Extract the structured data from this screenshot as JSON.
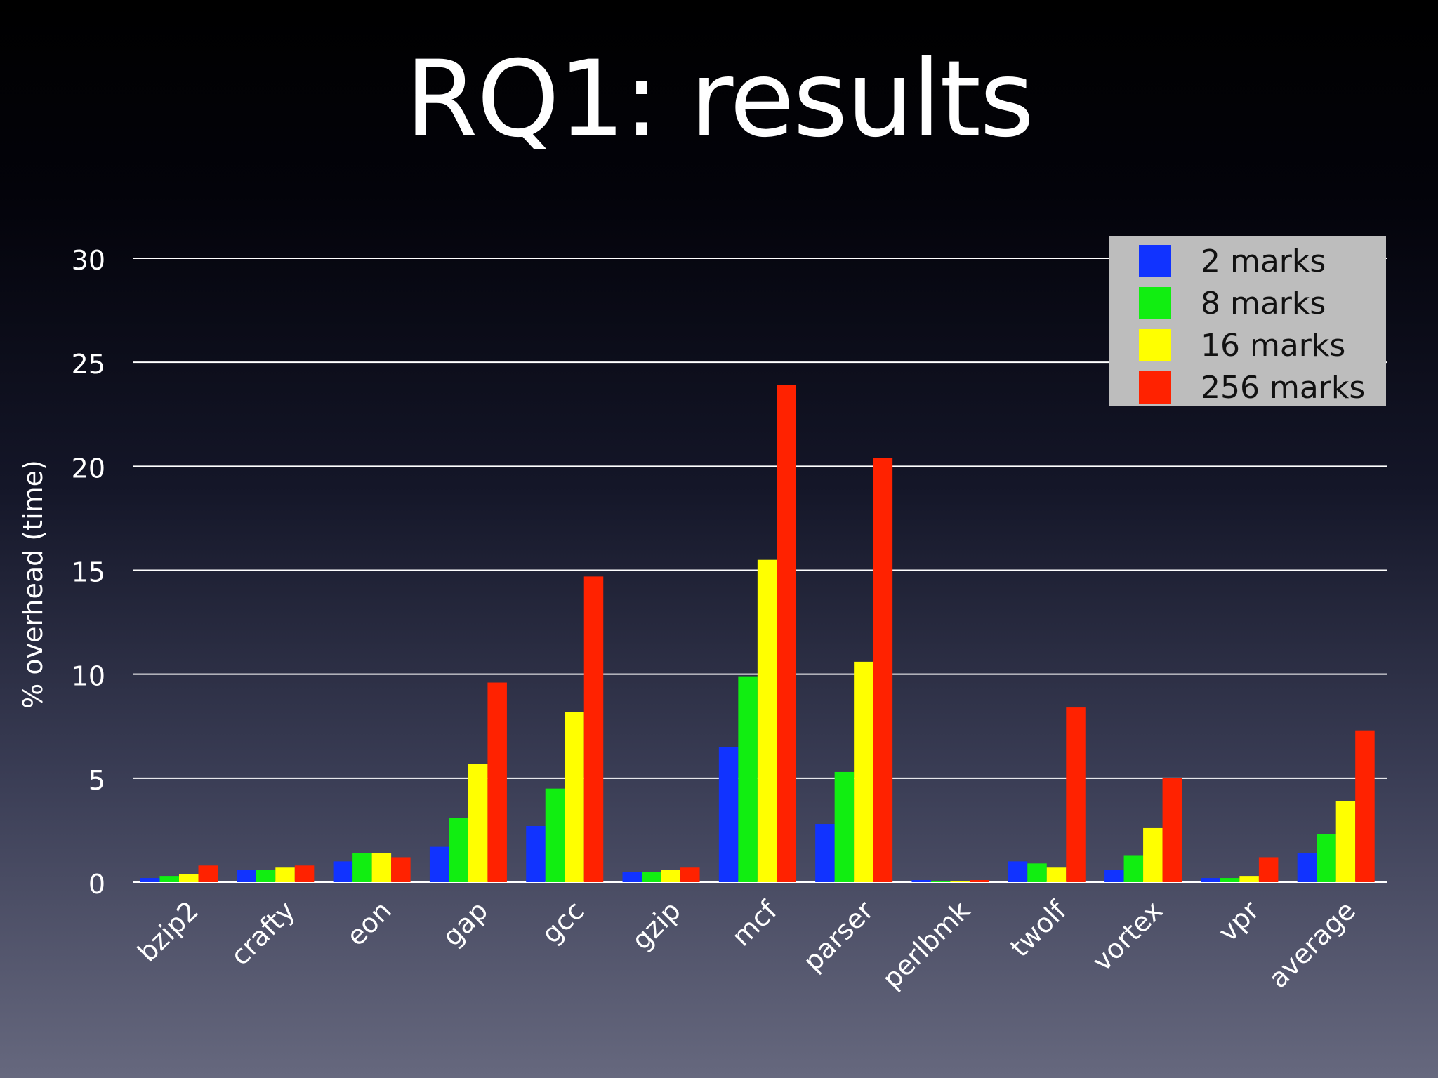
{
  "slide": {
    "title": "RQ1: results"
  },
  "colors": {
    "series": [
      "#1133ff",
      "#11ee11",
      "#ffff00",
      "#ff2200"
    ],
    "grid": "#ffffff",
    "text": "#ffffff",
    "legend_bg": "#bdbdbd",
    "legend_text": "#111111"
  },
  "chart_data": {
    "type": "bar",
    "title": "",
    "xlabel": "",
    "ylabel": "% overhead (time)",
    "ylim": [
      0,
      30
    ],
    "yticks": [
      0,
      5,
      10,
      15,
      20,
      25,
      30
    ],
    "grid": true,
    "legend_position": "top-right",
    "categories": [
      "bzip2",
      "crafty",
      "eon",
      "gap",
      "gcc",
      "gzip",
      "mcf",
      "parser",
      "perlbmk",
      "twolf",
      "vortex",
      "vpr",
      "average"
    ],
    "series": [
      {
        "name": "2 marks",
        "values": [
          0.2,
          0.6,
          1.0,
          1.7,
          2.7,
          0.5,
          6.5,
          2.8,
          0.1,
          1.0,
          0.6,
          0.2,
          1.4
        ]
      },
      {
        "name": "8 marks",
        "values": [
          0.3,
          0.6,
          1.4,
          3.1,
          4.5,
          0.5,
          9.9,
          5.3,
          0.05,
          0.9,
          1.3,
          0.2,
          2.3
        ]
      },
      {
        "name": "16 marks",
        "values": [
          0.4,
          0.7,
          1.4,
          5.7,
          8.2,
          0.6,
          15.5,
          10.6,
          0.05,
          0.7,
          2.6,
          0.3,
          3.9
        ]
      },
      {
        "name": "256 marks",
        "values": [
          0.8,
          0.8,
          1.2,
          9.6,
          14.7,
          0.7,
          23.9,
          20.4,
          0.1,
          8.4,
          5.0,
          1.2,
          7.3
        ]
      }
    ]
  }
}
